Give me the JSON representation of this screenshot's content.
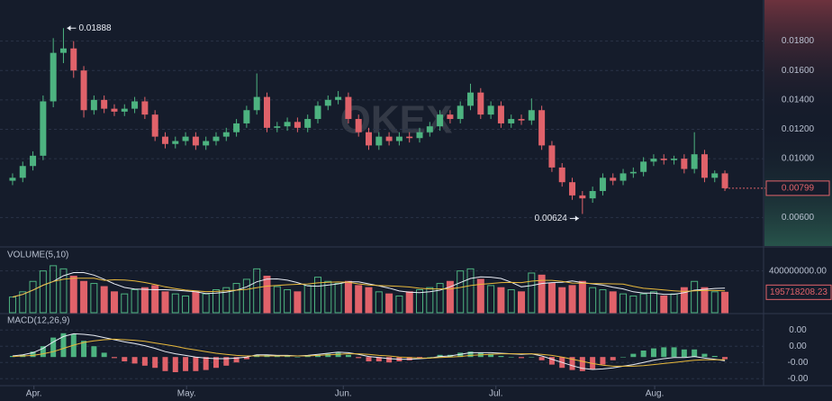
{
  "chart_data": [
    {
      "type": "candlestick",
      "watermark": "OKEX",
      "up_color": "#4db380",
      "down_color": "#e0626a",
      "xlim": [
        -0.35,
        73.8
      ],
      "xticks": [
        {
          "value": 2.1,
          "label": "Apr."
        },
        {
          "value": 17.1,
          "label": "May."
        },
        {
          "value": 32.5,
          "label": "Jun."
        },
        {
          "value": 47.5,
          "label": "Jul."
        },
        {
          "value": 63.1,
          "label": "Aug."
        }
      ],
      "ylim": [
        0.00412,
        0.02055
      ],
      "yticks": [
        {
          "value": 0.018,
          "label": "0.01800"
        },
        {
          "value": 0.016,
          "label": "0.01600"
        },
        {
          "value": 0.014,
          "label": "0.01400"
        },
        {
          "value": 0.012,
          "label": "0.01200"
        },
        {
          "value": 0.01,
          "label": "0.01000"
        },
        {
          "value": 0.006,
          "label": "0.00600"
        }
      ],
      "grid": true,
      "open": [
        0.0085,
        0.0087,
        0.0095,
        0.0102,
        0.0139,
        0.0172,
        0.0175,
        0.016,
        0.0133,
        0.014,
        0.0134,
        0.0132,
        0.0134,
        0.0139,
        0.013,
        0.0115,
        0.011,
        0.0112,
        0.0115,
        0.0109,
        0.0112,
        0.0115,
        0.0118,
        0.0124,
        0.0133,
        0.0142,
        0.0121,
        0.0122,
        0.0125,
        0.0121,
        0.0127,
        0.0136,
        0.014,
        0.0142,
        0.0127,
        0.0118,
        0.0109,
        0.0115,
        0.0112,
        0.0115,
        0.0114,
        0.0118,
        0.0122,
        0.013,
        0.0127,
        0.0136,
        0.0145,
        0.013,
        0.0136,
        0.0124,
        0.0127,
        0.0126,
        0.0133,
        0.0109,
        0.0094,
        0.0084,
        0.0075,
        0.0073,
        0.0078,
        0.0087,
        0.0085,
        0.009,
        0.0091,
        0.0098,
        0.01,
        0.0099,
        0.01,
        0.0093,
        0.0103,
        0.0087,
        0.009
      ],
      "high": [
        0.009,
        0.0098,
        0.0105,
        0.0143,
        0.0182,
        0.01888,
        0.018,
        0.0163,
        0.0143,
        0.0143,
        0.0137,
        0.0137,
        0.0142,
        0.0142,
        0.0133,
        0.0118,
        0.0115,
        0.0118,
        0.0118,
        0.0115,
        0.0118,
        0.0121,
        0.0127,
        0.0136,
        0.0158,
        0.0145,
        0.0125,
        0.0128,
        0.0128,
        0.013,
        0.0139,
        0.0143,
        0.0146,
        0.0145,
        0.013,
        0.0121,
        0.0118,
        0.0118,
        0.0118,
        0.0118,
        0.0121,
        0.0125,
        0.0133,
        0.0133,
        0.0139,
        0.0151,
        0.0148,
        0.0139,
        0.0139,
        0.013,
        0.013,
        0.0141,
        0.0136,
        0.0112,
        0.0097,
        0.0087,
        0.0078,
        0.0081,
        0.009,
        0.009,
        0.0093,
        0.0094,
        0.0101,
        0.0103,
        0.0103,
        0.0102,
        0.0103,
        0.0118,
        0.0106,
        0.0092,
        0.0092
      ],
      "low": [
        0.0082,
        0.0084,
        0.0092,
        0.0099,
        0.0135,
        0.0165,
        0.0155,
        0.0128,
        0.013,
        0.0131,
        0.0129,
        0.0129,
        0.0131,
        0.0127,
        0.0112,
        0.0107,
        0.0107,
        0.0109,
        0.0106,
        0.0106,
        0.0109,
        0.0112,
        0.0115,
        0.0121,
        0.013,
        0.0118,
        0.0118,
        0.0119,
        0.0118,
        0.0118,
        0.0124,
        0.0133,
        0.0137,
        0.0124,
        0.0115,
        0.0106,
        0.0106,
        0.0109,
        0.0109,
        0.0111,
        0.0111,
        0.0115,
        0.0119,
        0.0124,
        0.0124,
        0.0133,
        0.0127,
        0.0127,
        0.0121,
        0.0121,
        0.0123,
        0.0123,
        0.0106,
        0.0091,
        0.0081,
        0.0072,
        0.00624,
        0.007,
        0.0075,
        0.0082,
        0.0082,
        0.0087,
        0.0088,
        0.0095,
        0.0096,
        0.0096,
        0.009,
        0.009,
        0.0084,
        0.0084,
        0.0078
      ],
      "close": [
        0.0087,
        0.0095,
        0.0102,
        0.0139,
        0.0172,
        0.0175,
        0.016,
        0.0133,
        0.014,
        0.0134,
        0.0132,
        0.0134,
        0.0139,
        0.013,
        0.0115,
        0.011,
        0.0112,
        0.0115,
        0.0109,
        0.0112,
        0.0115,
        0.0118,
        0.0124,
        0.0133,
        0.0142,
        0.0121,
        0.0122,
        0.0125,
        0.0121,
        0.0127,
        0.0136,
        0.014,
        0.0142,
        0.0127,
        0.0118,
        0.0109,
        0.0115,
        0.0112,
        0.0115,
        0.0114,
        0.0118,
        0.0122,
        0.013,
        0.0127,
        0.0136,
        0.0145,
        0.013,
        0.0136,
        0.0124,
        0.0127,
        0.0126,
        0.0133,
        0.0109,
        0.0094,
        0.0084,
        0.0075,
        0.0073,
        0.0078,
        0.0087,
        0.0085,
        0.009,
        0.0091,
        0.0098,
        0.01,
        0.0099,
        0.01,
        0.0093,
        0.0103,
        0.0087,
        0.009,
        0.00799
      ]
    },
    {
      "type": "volume",
      "title": "VOLUME(5,10)",
      "ylim": [
        0,
        613000000.0
      ],
      "yticks": [
        {
          "value": 400000000,
          "label": "400000000.00"
        }
      ],
      "values": [
        150000000.0,
        200000000.0,
        300000000.0,
        400000000.0,
        450000000.0,
        420000000.0,
        350000000.0,
        300000000.0,
        280000000.0,
        250000000.0,
        200000000.0,
        180000000.0,
        220000000.0,
        240000000.0,
        260000000.0,
        200000000.0,
        180000000.0,
        160000000.0,
        200000000.0,
        180000000.0,
        220000000.0,
        240000000.0,
        280000000.0,
        320000000.0,
        420000000.0,
        350000000.0,
        250000000.0,
        220000000.0,
        200000000.0,
        260000000.0,
        340000000.0,
        300000000.0,
        280000000.0,
        300000000.0,
        260000000.0,
        240000000.0,
        200000000.0,
        180000000.0,
        160000000.0,
        200000000.0,
        220000000.0,
        240000000.0,
        280000000.0,
        300000000.0,
        400000000.0,
        420000000.0,
        320000000.0,
        260000000.0,
        240000000.0,
        220000000.0,
        200000000.0,
        380000000.0,
        360000000.0,
        280000000.0,
        240000000.0,
        260000000.0,
        300000000.0,
        240000000.0,
        220000000.0,
        200000000.0,
        180000000.0,
        160000000.0,
        180000000.0,
        200000000.0,
        160000000.0,
        180000000.0,
        240000000.0,
        300000000.0,
        240000000.0,
        200000000.0,
        195718208.23
      ],
      "lines": [
        {
          "color": "#e8ecf4",
          "values": [
            150000000.0,
            175000000.0,
            217000000.0,
            263000000.0,
            300000000.0,
            354000000.0,
            384000000.0,
            384000000.0,
            360000000.0,
            320000000.0,
            276000000.0,
            242000000.0,
            226000000.0,
            224000000.0,
            220000000.0,
            220000000.0,
            216000000.0,
            208000000.0,
            200000000.0,
            184000000.0,
            188000000.0,
            196000000.0,
            216000000.0,
            248000000.0,
            296000000.0,
            322000000.0,
            324000000.0,
            312000000.0,
            288000000.0,
            256000000.0,
            254000000.0,
            264000000.0,
            276000000.0,
            296000000.0,
            296000000.0,
            276000000.0,
            256000000.0,
            236000000.0,
            208000000.0,
            196000000.0,
            192000000.0,
            200000000.0,
            216000000.0,
            248000000.0,
            288000000.0,
            328000000.0,
            344000000.0,
            340000000.0,
            328000000.0,
            292000000.0,
            248000000.0,
            260000000.0,
            280000000.0,
            288000000.0,
            292000000.0,
            304000000.0,
            288000000.0,
            276000000.0,
            264000000.0,
            244000000.0,
            228000000.0,
            200000000.0,
            188000000.0,
            188000000.0,
            176000000.0,
            176000000.0,
            192000000.0,
            216000000.0,
            224000000.0,
            232000000.0,
            235000000.0
          ]
        },
        {
          "color": "#e8b93c",
          "values": [
            150000000.0,
            175000000.0,
            217000000.0,
            263000000.0,
            300000000.0,
            320000000.0,
            330000000.0,
            330000000.0,
            330000000.0,
            310000000.0,
            315000000.0,
            313000000.0,
            305000000.0,
            289000000.0,
            270000000.0,
            248000000.0,
            231000000.0,
            217000000.0,
            209000000.0,
            202000000.0,
            204000000.0,
            210000000.0,
            216000000.0,
            224000000.0,
            240000000.0,
            255000000.0,
            262000000.0,
            268000000.0,
            272000000.0,
            275000000.0,
            286000000.0,
            292000000.0,
            294000000.0,
            292000000.0,
            276000000.0,
            265000000.0,
            260000000.0,
            256000000.0,
            252000000.0,
            246000000.0,
            234000000.0,
            228000000.0,
            228000000.0,
            228000000.0,
            242000000.0,
            260000000.0,
            272000000.0,
            280000000.0,
            288000000.0,
            290000000.0,
            288000000.0,
            302000000.0,
            310000000.0,
            310000000.0,
            300000000.0,
            284000000.0,
            282000000.0,
            280000000.0,
            278000000.0,
            276000000.0,
            274000000.0,
            252000000.0,
            234000000.0,
            226000000.0,
            218000000.0,
            210000000.0,
            204000000.0,
            210000000.0,
            212000000.0,
            212000000.0,
            210000000.0
          ]
        }
      ]
    },
    {
      "type": "macd",
      "title": "MACD(12,26,9)",
      "ylim": [
        -0.00053,
        0.00077
      ],
      "yticks": [
        {
          "value": 0.0005,
          "label": "0.00"
        },
        {
          "value": 0.0002,
          "label": "0.00"
        },
        {
          "value": -0.0001,
          "label": "-0.00"
        },
        {
          "value": -0.0004,
          "label": "-0.00"
        }
      ],
      "dif_color": "#e8ecf4",
      "dea_color": "#e8b93c",
      "dif": [
        2e-05,
        4e-05,
        8e-05,
        0.00016,
        0.00028,
        0.00038,
        0.00043,
        0.00042,
        0.0004,
        0.00036,
        0.00032,
        0.00028,
        0.00025,
        0.00021,
        0.00016,
        0.0001,
        6e-05,
        3e-05,
        0,
        -2e-05,
        -3e-05,
        -3e-05,
        -2e-05,
        0,
        4e-05,
        4e-05,
        3e-05,
        3e-05,
        2e-05,
        3e-05,
        5e-05,
        7e-05,
        9e-05,
        8e-05,
        5e-05,
        1e-05,
        -1e-05,
        -3e-05,
        -4e-05,
        -4e-05,
        -3e-05,
        -2e-05,
        1e-05,
        2e-05,
        5e-05,
        8e-05,
        8e-05,
        8e-05,
        7e-05,
        6e-05,
        5e-05,
        6e-05,
        2e-05,
        -4e-05,
        -0.0001,
        -0.00016,
        -0.00021,
        -0.00023,
        -0.00022,
        -0.0002,
        -0.00017,
        -0.00014,
        -0.0001,
        -6e-05,
        -3e-05,
        -1e-05,
        -1e-05,
        1e-05,
        -2e-05,
        -4e-05,
        -7e-05
      ],
      "dea": [
        1e-05,
        2e-05,
        3e-05,
        6e-05,
        0.0001,
        0.00016,
        0.00022,
        0.00027,
        0.0003,
        0.00032,
        0.00033,
        0.00032,
        0.00031,
        0.00029,
        0.00026,
        0.00023,
        0.0002,
        0.00016,
        0.00013,
        0.0001,
        7e-05,
        5e-05,
        3e-05,
        2e-05,
        2e-05,
        2e-05,
        2e-05,
        2e-05,
        2e-05,
        2e-05,
        3e-05,
        4e-05,
        5e-05,
        6e-05,
        6e-05,
        5e-05,
        3e-05,
        2e-05,
        0,
        -1e-05,
        -2e-05,
        -2e-05,
        -1e-05,
        0,
        1e-05,
        3e-05,
        4e-05,
        5e-05,
        6e-05,
        6e-05,
        6e-05,
        6e-05,
        5e-05,
        3e-05,
        0,
        -4e-05,
        -8e-05,
        -0.00012,
        -0.00015,
        -0.00017,
        -0.00017,
        -0.00017,
        -0.00016,
        -0.00014,
        -0.00012,
        -0.0001,
        -8e-05,
        -6e-05,
        -5e-05,
        -5e-05,
        -5e-05
      ],
      "hist": [
        2e-05,
        4e-05,
        0.0001,
        0.0002,
        0.00036,
        0.00044,
        0.00042,
        0.0003,
        0.0002,
        8e-05,
        -2e-05,
        -8e-05,
        -0.00012,
        -0.00016,
        -0.0002,
        -0.00026,
        -0.00028,
        -0.00026,
        -0.00026,
        -0.00024,
        -0.0002,
        -0.00016,
        -0.0001,
        -4e-05,
        4e-05,
        4e-05,
        2e-05,
        2e-05,
        0,
        2e-05,
        4e-05,
        6e-05,
        8e-05,
        4e-05,
        -2e-05,
        -8e-05,
        -8e-05,
        -0.0001,
        -8e-05,
        -6e-05,
        -2e-05,
        0,
        4e-05,
        4e-05,
        8e-05,
        0.0001,
        8e-05,
        6e-05,
        2e-05,
        0,
        -2e-05,
        0,
        -6e-05,
        -0.00014,
        -0.0002,
        -0.00024,
        -0.00026,
        -0.00022,
        -0.00014,
        -6e-05,
        0,
        6e-05,
        0.00012,
        0.00016,
        0.00018,
        0.00018,
        0.00014,
        0.00014,
        6e-05,
        2e-05,
        -4e-05
      ]
    }
  ]
}
